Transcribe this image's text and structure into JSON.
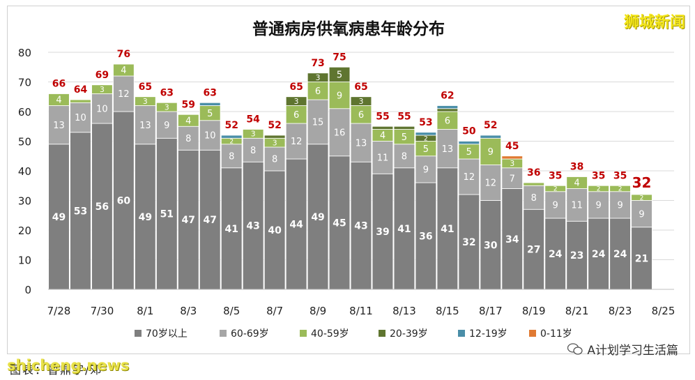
{
  "brand": "狮城新闻",
  "watermark": "shicheng.news",
  "caption": "图表：曾鼎宇/邓",
  "wechat_label": "A计划学习生活篇",
  "colors": {
    "s70": "#7f7f7f",
    "s60": "#a6a6a6",
    "s40": "#9bbb59",
    "s20": "#5f7530",
    "s12": "#4a8ea8",
    "s0": "#e07a33",
    "total": "#c00000"
  },
  "chart_data": {
    "type": "bar",
    "stacked": true,
    "title": "普通病房供氧病患年龄分布",
    "ylim": [
      0,
      80
    ],
    "yticks": [
      "0",
      "10",
      "20",
      "30",
      "40",
      "50",
      "60",
      "70",
      "80"
    ],
    "grid": true,
    "legend_position": "bottom",
    "categories": [
      "7/28",
      "7/29",
      "7/30",
      "7/31",
      "8/1",
      "8/2",
      "8/3",
      "8/4",
      "8/5",
      "8/6",
      "8/7",
      "8/8",
      "8/9",
      "8/10",
      "8/11",
      "8/12",
      "8/13",
      "8/14",
      "8/15",
      "8/16",
      "8/17",
      "8/18",
      "8/19",
      "8/20",
      "8/21",
      "8/22",
      "8/23",
      "8/24",
      "8/25"
    ],
    "xtick_labels": [
      "7/28",
      "",
      "7/30",
      "",
      "8/1",
      "",
      "8/3",
      "",
      "8/5",
      "",
      "8/7",
      "",
      "8/9",
      "",
      "8/11",
      "",
      "8/13",
      "",
      "8/15",
      "",
      "8/17",
      "",
      "8/19",
      "",
      "8/21",
      "",
      "8/23",
      "",
      "8/25"
    ],
    "series": [
      {
        "name": "70岁以上",
        "color_key": "s70",
        "values": [
          49,
          53,
          56,
          60,
          49,
          51,
          47,
          47,
          41,
          43,
          40,
          44,
          49,
          45,
          43,
          39,
          41,
          36,
          41,
          32,
          30,
          34,
          27,
          24,
          23,
          24,
          24,
          21,
          0
        ]
      },
      {
        "name": "60-69岁",
        "color_key": "s60",
        "values": [
          13,
          10,
          10,
          12,
          13,
          9,
          8,
          10,
          8,
          8,
          8,
          12,
          15,
          16,
          13,
          11,
          8,
          9,
          13,
          12,
          12,
          7,
          8,
          9,
          11,
          9,
          9,
          9,
          0
        ]
      },
      {
        "name": "40-59岁",
        "color_key": "s40",
        "values": [
          4,
          1,
          3,
          4,
          3,
          3,
          4,
          5,
          2,
          3,
          3,
          6,
          6,
          9,
          6,
          4,
          5,
          5,
          6,
          5,
          9,
          3,
          1,
          2,
          4,
          2,
          2,
          2,
          0
        ]
      },
      {
        "name": "20-39岁",
        "color_key": "s20",
        "values": [
          0,
          0,
          0,
          0,
          0,
          0,
          0,
          0,
          0,
          0,
          1,
          3,
          3,
          5,
          3,
          1,
          1,
          2,
          1,
          0,
          0,
          0,
          0,
          0,
          0,
          0,
          0,
          0,
          0
        ]
      },
      {
        "name": "12-19岁",
        "color_key": "s12",
        "values": [
          0,
          0,
          0,
          0,
          0,
          0,
          0,
          1,
          1,
          0,
          0,
          0,
          0,
          0,
          0,
          0,
          0,
          1,
          1,
          1,
          1,
          0,
          0,
          0,
          0,
          0,
          0,
          0,
          0
        ]
      },
      {
        "name": "0-11岁",
        "color_key": "s0",
        "values": [
          0,
          0,
          0,
          0,
          0,
          0,
          0,
          0,
          0,
          0,
          0,
          0,
          0,
          0,
          0,
          0,
          0,
          0,
          0,
          0,
          0,
          1,
          0,
          0,
          0,
          0,
          0,
          0,
          0
        ]
      }
    ],
    "totals": [
      66,
      64,
      69,
      76,
      65,
      63,
      59,
      63,
      52,
      54,
      52,
      65,
      73,
      75,
      65,
      55,
      55,
      53,
      62,
      50,
      52,
      45,
      36,
      35,
      38,
      35,
      35,
      32,
      null
    ]
  }
}
